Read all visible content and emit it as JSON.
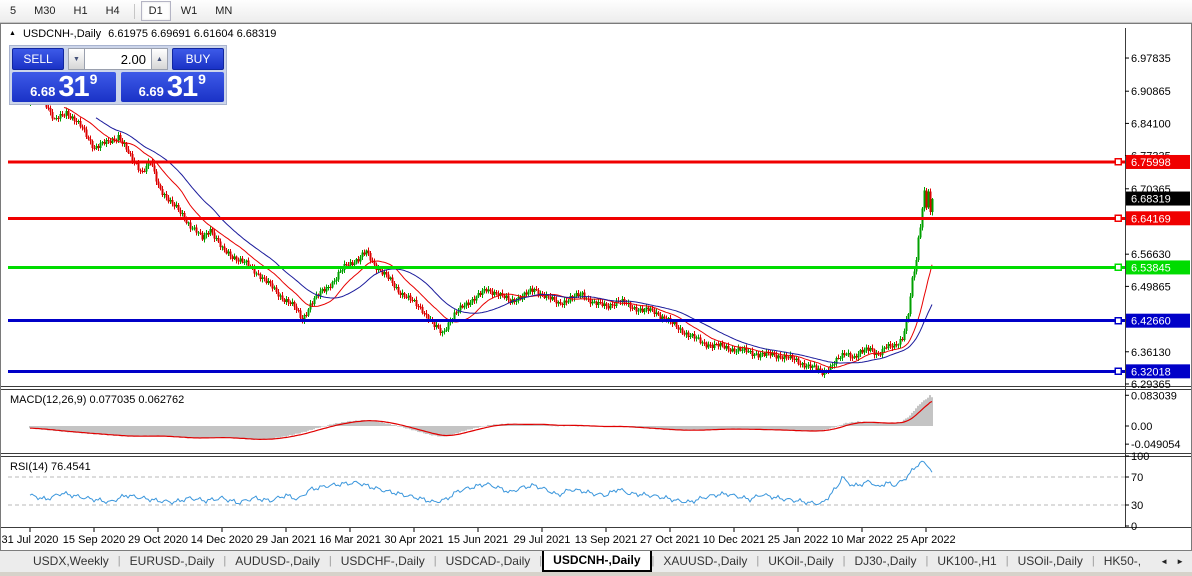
{
  "toolbar": {
    "timeframes": [
      {
        "label": "5",
        "active": false
      },
      {
        "label": "M30",
        "active": false
      },
      {
        "label": "H1",
        "active": false
      },
      {
        "label": "H4",
        "active": false
      },
      {
        "label": "D1",
        "active": true
      },
      {
        "label": "W1",
        "active": false
      },
      {
        "label": "MN",
        "active": false
      }
    ],
    "divider_after_index": 3
  },
  "title": {
    "marker": "▲",
    "symbol": "USDCNH-,Daily",
    "ohlc": "6.61975 6.69691 6.61604 6.68319"
  },
  "trade_panel": {
    "sell_label": "SELL",
    "buy_label": "BUY",
    "volume": "2.00",
    "sell_price_small": "6.68",
    "sell_price_big": "31",
    "sell_price_sup": "9",
    "buy_price_small": "6.69",
    "buy_price_big": "31",
    "buy_price_sup": "9"
  },
  "icons": {
    "volume_down_arrow": "▼",
    "volume_up_arrow": "▲",
    "title_marker": "▲",
    "tabs_scroll_left": "◄",
    "tabs_scroll_right": "►"
  },
  "tabs": {
    "items": [
      "USDX,Weekly",
      "EURUSD-,Daily",
      "AUDUSD-,Daily",
      "USDCHF-,Daily",
      "USDCAD-,Daily",
      "USDCNH-,Daily",
      "XAUUSD-,Daily",
      "UKOil-,Daily",
      "DJ30-,Daily",
      "UK100-,H1",
      "USOil-,Daily",
      "HK50-,"
    ],
    "active_index": 5
  },
  "chart_data": {
    "type": "candlestick",
    "symbol": "USDCNH-",
    "timeframe": "Daily",
    "title": "USDCNH-,Daily",
    "ohlc_display": {
      "open": "6.61975",
      "high": "6.69691",
      "low": "6.61604",
      "close": "6.68319"
    },
    "n_candles": 452,
    "x_tick_step": 32,
    "x_tick_labels": [
      "31 Jul 2020",
      "15 Sep 2020",
      "29 Oct 2020",
      "14 Dec 2020",
      "29 Jan 2021",
      "16 Mar 2021",
      "30 Apr 2021",
      "15 Jun 2021",
      "29 Jul 2021",
      "13 Sep 2021",
      "27 Oct 2021",
      "10 Dec 2021",
      "25 Jan 2022",
      "10 Mar 2022",
      "25 Apr 2022"
    ],
    "price_axis_ticks": [
      "6.97835",
      "6.90865",
      "6.84100",
      "6.77335",
      "6.70365",
      "6.56630",
      "6.49865",
      "6.36130",
      "6.29365"
    ],
    "ylim": [
      6.2915,
      7.0099
    ],
    "levels": [
      {
        "price": 6.75998,
        "label": "6.75998",
        "color": "#f00000"
      },
      {
        "price": 6.64169,
        "label": "6.64169",
        "color": "#f00000"
      },
      {
        "price": 6.53845,
        "label": "6.53845",
        "color": "#00dc00"
      },
      {
        "price": 6.4266,
        "label": "6.42660",
        "color": "#0000c8"
      },
      {
        "price": 6.32018,
        "label": "6.32018",
        "color": "#0000c8"
      }
    ],
    "current_price": {
      "price": 6.68319,
      "label": "6.68319",
      "color": "#000000"
    },
    "price_keypoints": [
      [
        0,
        6.885
      ],
      [
        6,
        6.9
      ],
      [
        12,
        6.845
      ],
      [
        18,
        6.866
      ],
      [
        26,
        6.83
      ],
      [
        32,
        6.79
      ],
      [
        38,
        6.8
      ],
      [
        44,
        6.815
      ],
      [
        50,
        6.77
      ],
      [
        56,
        6.74
      ],
      [
        60,
        6.76
      ],
      [
        64,
        6.71
      ],
      [
        70,
        6.675
      ],
      [
        76,
        6.65
      ],
      [
        80,
        6.625
      ],
      [
        86,
        6.6
      ],
      [
        90,
        6.62
      ],
      [
        96,
        6.575
      ],
      [
        102,
        6.56
      ],
      [
        108,
        6.545
      ],
      [
        114,
        6.525
      ],
      [
        120,
        6.5
      ],
      [
        126,
        6.475
      ],
      [
        132,
        6.455
      ],
      [
        136,
        6.43
      ],
      [
        140,
        6.46
      ],
      [
        146,
        6.49
      ],
      [
        152,
        6.51
      ],
      [
        158,
        6.545
      ],
      [
        164,
        6.555
      ],
      [
        168,
        6.57
      ],
      [
        172,
        6.545
      ],
      [
        178,
        6.52
      ],
      [
        184,
        6.49
      ],
      [
        190,
        6.47
      ],
      [
        196,
        6.45
      ],
      [
        202,
        6.415
      ],
      [
        206,
        6.4
      ],
      [
        210,
        6.43
      ],
      [
        216,
        6.455
      ],
      [
        222,
        6.475
      ],
      [
        228,
        6.49
      ],
      [
        234,
        6.485
      ],
      [
        240,
        6.465
      ],
      [
        246,
        6.48
      ],
      [
        252,
        6.49
      ],
      [
        258,
        6.48
      ],
      [
        264,
        6.46
      ],
      [
        270,
        6.475
      ],
      [
        276,
        6.48
      ],
      [
        282,
        6.465
      ],
      [
        288,
        6.455
      ],
      [
        294,
        6.47
      ],
      [
        300,
        6.455
      ],
      [
        306,
        6.45
      ],
      [
        312,
        6.445
      ],
      [
        318,
        6.43
      ],
      [
        324,
        6.41
      ],
      [
        330,
        6.395
      ],
      [
        336,
        6.38
      ],
      [
        342,
        6.375
      ],
      [
        348,
        6.37
      ],
      [
        354,
        6.365
      ],
      [
        360,
        6.36
      ],
      [
        366,
        6.355
      ],
      [
        372,
        6.355
      ],
      [
        378,
        6.35
      ],
      [
        384,
        6.34
      ],
      [
        390,
        6.33
      ],
      [
        396,
        6.318
      ],
      [
        400,
        6.33
      ],
      [
        404,
        6.345
      ],
      [
        408,
        6.36
      ],
      [
        412,
        6.35
      ],
      [
        416,
        6.36
      ],
      [
        420,
        6.37
      ],
      [
        424,
        6.355
      ],
      [
        428,
        6.37
      ],
      [
        432,
        6.375
      ],
      [
        436,
        6.39
      ],
      [
        439,
        6.44
      ],
      [
        441,
        6.51
      ],
      [
        443,
        6.555
      ],
      [
        444,
        6.6
      ],
      [
        445,
        6.63
      ],
      [
        446,
        6.665
      ],
      [
        447,
        6.7
      ],
      [
        448,
        6.67
      ],
      [
        449,
        6.695
      ],
      [
        450,
        6.65
      ],
      [
        451,
        6.683
      ]
    ],
    "moving_averages": [
      {
        "period": 18,
        "color": "#e80000"
      },
      {
        "period": 34,
        "color": "#1c1c9c"
      }
    ],
    "macd": {
      "label": "MACD(12,26,9)",
      "values_text": "0.077035 0.062762",
      "axis_labels": [
        "0.083039",
        "0.00",
        "-0.049054"
      ],
      "axis_values": [
        0.083039,
        0,
        -0.049054
      ],
      "ylim": [
        -0.0676,
        0.0946
      ],
      "hist_color": "#c4c4c4",
      "signal_color": "#e00000",
      "keypoints": [
        [
          0,
          -0.006
        ],
        [
          16,
          -0.015
        ],
        [
          32,
          -0.022
        ],
        [
          48,
          -0.028
        ],
        [
          64,
          -0.027
        ],
        [
          80,
          -0.033
        ],
        [
          96,
          -0.031
        ],
        [
          104,
          -0.034
        ],
        [
          112,
          -0.037
        ],
        [
          120,
          -0.035
        ],
        [
          128,
          -0.028
        ],
        [
          136,
          -0.018
        ],
        [
          144,
          -0.005
        ],
        [
          152,
          0.006
        ],
        [
          160,
          0.013
        ],
        [
          168,
          0.016
        ],
        [
          176,
          0.01
        ],
        [
          184,
          0
        ],
        [
          192,
          -0.012
        ],
        [
          200,
          -0.024
        ],
        [
          206,
          -0.029
        ],
        [
          212,
          -0.022
        ],
        [
          218,
          -0.012
        ],
        [
          224,
          -0.004
        ],
        [
          230,
          0.003
        ],
        [
          238,
          0.006
        ],
        [
          246,
          0.004
        ],
        [
          254,
          0.005
        ],
        [
          262,
          0.001
        ],
        [
          270,
          0.002
        ],
        [
          278,
          0
        ],
        [
          286,
          -0.002
        ],
        [
          294,
          -0.001
        ],
        [
          302,
          -0.004
        ],
        [
          310,
          -0.007
        ],
        [
          318,
          -0.01
        ],
        [
          326,
          -0.012
        ],
        [
          334,
          -0.011
        ],
        [
          342,
          -0.009
        ],
        [
          350,
          -0.008
        ],
        [
          358,
          -0.009
        ],
        [
          366,
          -0.01
        ],
        [
          374,
          -0.011
        ],
        [
          382,
          -0.013
        ],
        [
          390,
          -0.014
        ],
        [
          396,
          -0.012
        ],
        [
          402,
          -0.004
        ],
        [
          408,
          0.008
        ],
        [
          414,
          0.012
        ],
        [
          420,
          0.01
        ],
        [
          426,
          0.007
        ],
        [
          432,
          0.008
        ],
        [
          436,
          0.012
        ],
        [
          440,
          0.028
        ],
        [
          443,
          0.048
        ],
        [
          446,
          0.065
        ],
        [
          448,
          0.072
        ],
        [
          450,
          0.083039
        ],
        [
          451,
          0.077035
        ]
      ]
    },
    "rsi": {
      "label": "RSI(14)",
      "value_text": "76.4541",
      "axis_labels": [
        "100",
        "70",
        "30",
        "0"
      ],
      "axis_values": [
        100,
        70,
        30,
        0
      ],
      "dashed_levels": [
        70,
        30
      ],
      "ylim": [
        -1.43,
        97.14
      ],
      "line_color": "#3a96dc",
      "keypoints": [
        [
          0,
          44
        ],
        [
          8,
          38
        ],
        [
          16,
          47
        ],
        [
          24,
          42
        ],
        [
          32,
          38
        ],
        [
          40,
          34
        ],
        [
          48,
          44
        ],
        [
          56,
          40
        ],
        [
          64,
          36
        ],
        [
          72,
          34
        ],
        [
          80,
          40
        ],
        [
          88,
          36
        ],
        [
          96,
          40
        ],
        [
          104,
          33
        ],
        [
          112,
          40
        ],
        [
          120,
          36
        ],
        [
          128,
          44
        ],
        [
          134,
          38
        ],
        [
          140,
          52
        ],
        [
          148,
          57
        ],
        [
          156,
          60
        ],
        [
          164,
          62
        ],
        [
          170,
          56
        ],
        [
          178,
          50
        ],
        [
          186,
          45
        ],
        [
          194,
          40
        ],
        [
          202,
          34
        ],
        [
          208,
          38
        ],
        [
          214,
          50
        ],
        [
          222,
          56
        ],
        [
          228,
          60
        ],
        [
          234,
          55
        ],
        [
          240,
          48
        ],
        [
          246,
          55
        ],
        [
          252,
          58
        ],
        [
          258,
          52
        ],
        [
          264,
          44
        ],
        [
          270,
          52
        ],
        [
          276,
          50
        ],
        [
          282,
          46
        ],
        [
          288,
          44
        ],
        [
          294,
          53
        ],
        [
          300,
          46
        ],
        [
          306,
          45
        ],
        [
          312,
          43
        ],
        [
          318,
          40
        ],
        [
          324,
          36
        ],
        [
          330,
          34
        ],
        [
          336,
          40
        ],
        [
          342,
          44
        ],
        [
          348,
          46
        ],
        [
          354,
          42
        ],
        [
          360,
          38
        ],
        [
          366,
          45
        ],
        [
          372,
          41
        ],
        [
          378,
          38
        ],
        [
          384,
          36
        ],
        [
          390,
          33
        ],
        [
          396,
          32
        ],
        [
          400,
          44
        ],
        [
          404,
          58
        ],
        [
          406,
          70
        ],
        [
          408,
          64
        ],
        [
          412,
          57
        ],
        [
          416,
          60
        ],
        [
          420,
          64
        ],
        [
          424,
          55
        ],
        [
          428,
          62
        ],
        [
          432,
          58
        ],
        [
          436,
          64
        ],
        [
          439,
          72
        ],
        [
          442,
          82
        ],
        [
          444,
          88
        ],
        [
          446,
          91
        ],
        [
          447,
          90
        ],
        [
          449,
          87
        ],
        [
          451,
          76.4541
        ]
      ]
    },
    "colors": {
      "candle_up": "#00a000",
      "candle_down": "#dc0202",
      "background": "#ffffff",
      "axis_text": "#000000"
    }
  }
}
